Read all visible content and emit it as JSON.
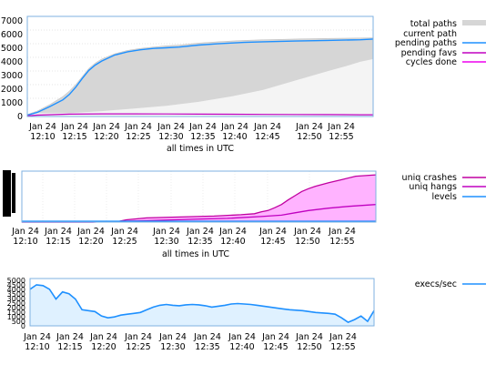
{
  "chart_data": [
    {
      "type": "area",
      "x_tick_labels": [
        {
          "date": "Jan 24",
          "time": "12:10"
        },
        {
          "date": "Jan 24",
          "time": "12:15"
        },
        {
          "date": "Jan 24",
          "time": "12:20"
        },
        {
          "date": "Jan 24",
          "time": "12:25"
        },
        {
          "date": "Jan 24",
          "time": "12:30"
        },
        {
          "date": "Jan 24",
          "time": "12:35"
        },
        {
          "date": "Jan 24",
          "time": "12:40"
        },
        {
          "date": "Jan 24",
          "time": "12:45"
        },
        {
          "date": "Jan 24",
          "time": "12:50"
        },
        {
          "date": "Jan 24",
          "time": "12:55"
        }
      ],
      "x_ticks_min": [
        10,
        15,
        20,
        25,
        30,
        35,
        40,
        45,
        50,
        55
      ],
      "xlim_min": [
        8.5,
        62
      ],
      "xlabel": "all times in UTC",
      "ylabel": "",
      "y_tick_labels": [
        "0",
        "1000",
        "2000",
        "3000",
        "4000",
        "5000",
        "6000",
        "7000"
      ],
      "y_ticks": [
        0,
        1000,
        2000,
        3000,
        4000,
        5000,
        6000,
        7000
      ],
      "ylim": [
        0,
        7500
      ],
      "legend_position": "right",
      "legend": [
        {
          "name": "total paths",
          "color": "#c8c8c8",
          "style": "area"
        },
        {
          "name": "current path",
          "color": "#ffffff",
          "style": "line"
        },
        {
          "name": "pending paths",
          "color": "#1e90ff",
          "style": "line"
        },
        {
          "name": "pending favs",
          "color": "#c000c0",
          "style": "line"
        },
        {
          "name": "cycles done",
          "color": "#ee00ee",
          "style": "line"
        }
      ],
      "series": [
        {
          "name": "total paths",
          "x_min": [
            8.5,
            10,
            12,
            14,
            15,
            16,
            17,
            18,
            19,
            20,
            22,
            24,
            26,
            28,
            30,
            32,
            35,
            38,
            40,
            42,
            45,
            50,
            55,
            60,
            62
          ],
          "values": [
            150,
            400,
            900,
            1500,
            1900,
            2400,
            3000,
            3600,
            4000,
            4300,
            4700,
            4950,
            5100,
            5200,
            5300,
            5350,
            5500,
            5600,
            5650,
            5700,
            5750,
            5800,
            5850,
            5880,
            5900
          ]
        },
        {
          "name": "current path",
          "x_min": [
            8.5,
            10,
            15,
            20,
            25,
            30,
            35,
            40,
            45,
            50,
            55,
            58,
            60,
            62
          ],
          "values": [
            100,
            250,
            250,
            400,
            600,
            800,
            1100,
            1500,
            2000,
            2700,
            3400,
            3800,
            4100,
            4300
          ]
        },
        {
          "name": "pending paths",
          "x_min": [
            8.5,
            10,
            12,
            14,
            15,
            16,
            17,
            18,
            19,
            20,
            22,
            24,
            26,
            28,
            30,
            32,
            35,
            38,
            40,
            42,
            45,
            50,
            55,
            60,
            62
          ],
          "values": [
            100,
            300,
            750,
            1250,
            1650,
            2200,
            2850,
            3450,
            3850,
            4150,
            4600,
            4850,
            5000,
            5100,
            5150,
            5200,
            5350,
            5450,
            5500,
            5550,
            5600,
            5650,
            5700,
            5750,
            5800
          ]
        },
        {
          "name": "pending favs",
          "x_min": [
            8.5,
            10,
            15,
            20,
            25,
            30,
            35,
            40,
            45,
            50,
            55,
            60,
            62
          ],
          "values": [
            50,
            100,
            180,
            200,
            200,
            190,
            180,
            170,
            160,
            150,
            140,
            130,
            130
          ]
        },
        {
          "name": "cycles done",
          "x_min": [
            8.5,
            62
          ],
          "values": [
            0,
            0
          ]
        }
      ]
    },
    {
      "type": "line",
      "x_tick_labels": [
        {
          "date": "Jan 24",
          "time": "12:10"
        },
        {
          "date": "Jan 24",
          "time": "12:15"
        },
        {
          "date": "Jan 24",
          "time": "12:20"
        },
        {
          "date": "Jan 24",
          "time": "12:25"
        },
        {
          "date": "Jan 24",
          "time": "12:30"
        },
        {
          "date": "Jan 24",
          "time": "12:35"
        },
        {
          "date": "Jan 24",
          "time": "12:40"
        },
        {
          "date": "Jan 24",
          "time": "12:45"
        },
        {
          "date": "Jan 24",
          "time": "12:50"
        },
        {
          "date": "Jan 24",
          "time": "12:55"
        }
      ],
      "x_ticks_min": [
        10,
        15,
        20,
        25,
        30,
        35,
        40,
        45,
        50,
        55
      ],
      "xlim_min": [
        9.5,
        62
      ],
      "xlabel": "all times in UTC",
      "ylabel": "",
      "y_ticks": [
        0,
        25,
        50,
        75,
        100
      ],
      "ylim": [
        0,
        110
      ],
      "legend_position": "right",
      "legend": [
        {
          "name": "uniq crashes",
          "color": "#c000a0",
          "style": "line"
        },
        {
          "name": "uniq hangs",
          "color": "#c000c0",
          "style": "line"
        },
        {
          "name": "levels",
          "color": "#1e90ff",
          "style": "line"
        }
      ],
      "series": [
        {
          "name": "uniq crashes",
          "x_min": [
            9.5,
            20,
            24,
            25,
            28,
            33,
            38,
            42,
            44,
            45,
            46,
            47,
            48,
            49,
            50,
            51,
            52,
            53,
            55,
            57,
            59,
            61,
            62
          ],
          "values": [
            0,
            0,
            2,
            5,
            9,
            11,
            13,
            16,
            18,
            22,
            25,
            31,
            38,
            48,
            57,
            66,
            72,
            77,
            85,
            92,
            99,
            101,
            102
          ]
        },
        {
          "name": "uniq hangs",
          "x_min": [
            9.5,
            20,
            25,
            30,
            35,
            40,
            45,
            48,
            50,
            52,
            55,
            58,
            60,
            62
          ],
          "values": [
            0,
            0,
            2,
            4,
            6,
            8,
            12,
            15,
            20,
            25,
            30,
            34,
            36,
            38
          ]
        },
        {
          "name": "levels",
          "x_min": [
            9.5,
            62
          ],
          "values": [
            2,
            2
          ]
        }
      ]
    },
    {
      "type": "line",
      "x_tick_labels": [
        {
          "date": "Jan 24",
          "time": "12:10"
        },
        {
          "date": "Jan 24",
          "time": "12:15"
        },
        {
          "date": "Jan 24",
          "time": "12:20"
        },
        {
          "date": "Jan 24",
          "time": "12:25"
        },
        {
          "date": "Jan 24",
          "time": "12:30"
        },
        {
          "date": "Jan 24",
          "time": "12:35"
        },
        {
          "date": "Jan 24",
          "time": "12:40"
        },
        {
          "date": "Jan 24",
          "time": "12:45"
        },
        {
          "date": "Jan 24",
          "time": "12:50"
        },
        {
          "date": "Jan 24",
          "time": "12:55"
        }
      ],
      "x_ticks_min": [
        10,
        15,
        20,
        25,
        30,
        35,
        40,
        45,
        50,
        55
      ],
      "xlim_min": [
        9,
        62
      ],
      "xlabel": "",
      "ylabel": "",
      "y_tick_labels": [
        "0",
        "500",
        "1000",
        "1500",
        "2000",
        "2500",
        "3000",
        "3500",
        "4000",
        "4500",
        "5000"
      ],
      "y_ticks": [
        0,
        500,
        1000,
        1500,
        2000,
        2500,
        3000,
        3500,
        4000,
        4500,
        5000
      ],
      "ylim": [
        0,
        5300
      ],
      "legend_position": "right",
      "legend": [
        {
          "name": "execs/sec",
          "color": "#1e90ff",
          "style": "line"
        }
      ],
      "series": [
        {
          "name": "execs/sec",
          "x_min": [
            9,
            10,
            11,
            12,
            13,
            14,
            15,
            16,
            17,
            18,
            19,
            20,
            21,
            22,
            23,
            24,
            25,
            26,
            27,
            28,
            29,
            30,
            31,
            32,
            33,
            34,
            35,
            36,
            37,
            38,
            39,
            40,
            41,
            42,
            43,
            44,
            45,
            46,
            47,
            48,
            49,
            50,
            51,
            52,
            53,
            54,
            55,
            56,
            57,
            58,
            59,
            60,
            61,
            62
          ],
          "values": [
            4100,
            4600,
            4500,
            4100,
            3000,
            3800,
            3600,
            3000,
            1800,
            1700,
            1600,
            1100,
            900,
            1000,
            1200,
            1300,
            1400,
            1500,
            1800,
            2100,
            2300,
            2400,
            2300,
            2250,
            2350,
            2400,
            2350,
            2250,
            2100,
            2200,
            2300,
            2450,
            2500,
            2450,
            2400,
            2300,
            2200,
            2100,
            2000,
            1900,
            1800,
            1750,
            1700,
            1600,
            1500,
            1450,
            1400,
            1300,
            900,
            400,
            700,
            1100,
            500,
            1700
          ]
        }
      ]
    }
  ]
}
